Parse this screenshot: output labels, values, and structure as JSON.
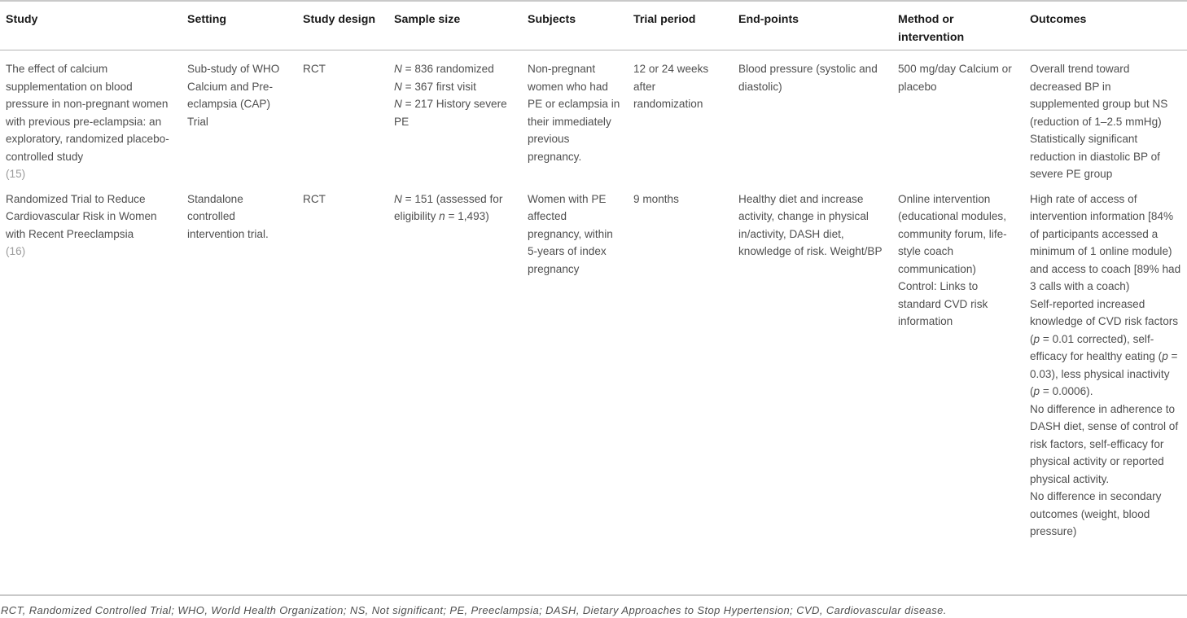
{
  "colors": {
    "background": "#ffffff",
    "header_text": "#1a1a1a",
    "body_text": "#4f4f4f",
    "citation_text": "#9b9b9b",
    "rule_light": "#c9c9c9",
    "rule_mid": "#b3b3b3"
  },
  "table": {
    "headers": [
      "Study",
      "Setting",
      "Study design",
      "Sample size",
      "Subjects",
      "Trial period",
      "End-points",
      "Method or intervention",
      "Outcomes"
    ],
    "rows": [
      {
        "study_title": "The effect of calcium supplementation on blood pressure in non-pregnant women with previous pre-eclampsia: an exploratory, randomized placebo-controlled study",
        "citation": "(15)",
        "setting": "Sub-study of WHO Calcium and Pre-eclampsia (CAP) Trial",
        "study_design": "RCT",
        "sample_size": "*N* = 836 randomized\n*N* = 367 first visit\n*N* = 217 History severe PE",
        "subjects": "Non-pregnant women who had PE or eclampsia in their immediately previous pregnancy.",
        "trial_period": "12 or 24 weeks after randomization",
        "end_points": "Blood pressure (systolic and diastolic)",
        "method": "500 mg/day Calcium or placebo",
        "outcomes": "Overall trend toward decreased BP in supplemented group but NS (reduction of 1–2.5 mmHg)\nStatistically significant reduction in diastolic BP of severe PE group"
      },
      {
        "study_title": "Randomized Trial to Reduce Cardiovascular Risk in Women with Recent Preeclampsia",
        "citation": "(16)",
        "setting": "Standalone controlled intervention trial.",
        "study_design": "RCT",
        "sample_size": "*N* = 151 (assessed for eligibility *n* = 1,493)",
        "subjects": "Women with PE affected pregnancy, within 5-years of index pregnancy",
        "trial_period": "9 months",
        "end_points": "Healthy diet and increase activity, change in physical in/activity, DASH diet, knowledge of risk. Weight/BP",
        "method": "Online intervention (educational modules, community forum, life-style coach communication)\nControl: Links to standard CVD risk information",
        "outcomes": "High rate of access of intervention information [84% of participants accessed a minimum of 1 online module) and access to coach [89% had 3 calls with a coach)\nSelf-reported increased knowledge of CVD risk factors (*p* = 0.01 corrected), self-efficacy for healthy eating (*p* = 0.03), less physical inactivity (*p* = 0.0006).\nNo difference in adherence to DASH diet, sense of control of risk factors, self-efficacy for physical activity or reported physical activity.\nNo difference in secondary outcomes (weight, blood pressure)"
      }
    ]
  },
  "footnote": "RCT, Randomized Controlled Trial; WHO, World Health Organization; NS, Not significant; PE, Preeclampsia; DASH, Dietary Approaches to Stop Hypertension; CVD, Cardiovascular disease."
}
